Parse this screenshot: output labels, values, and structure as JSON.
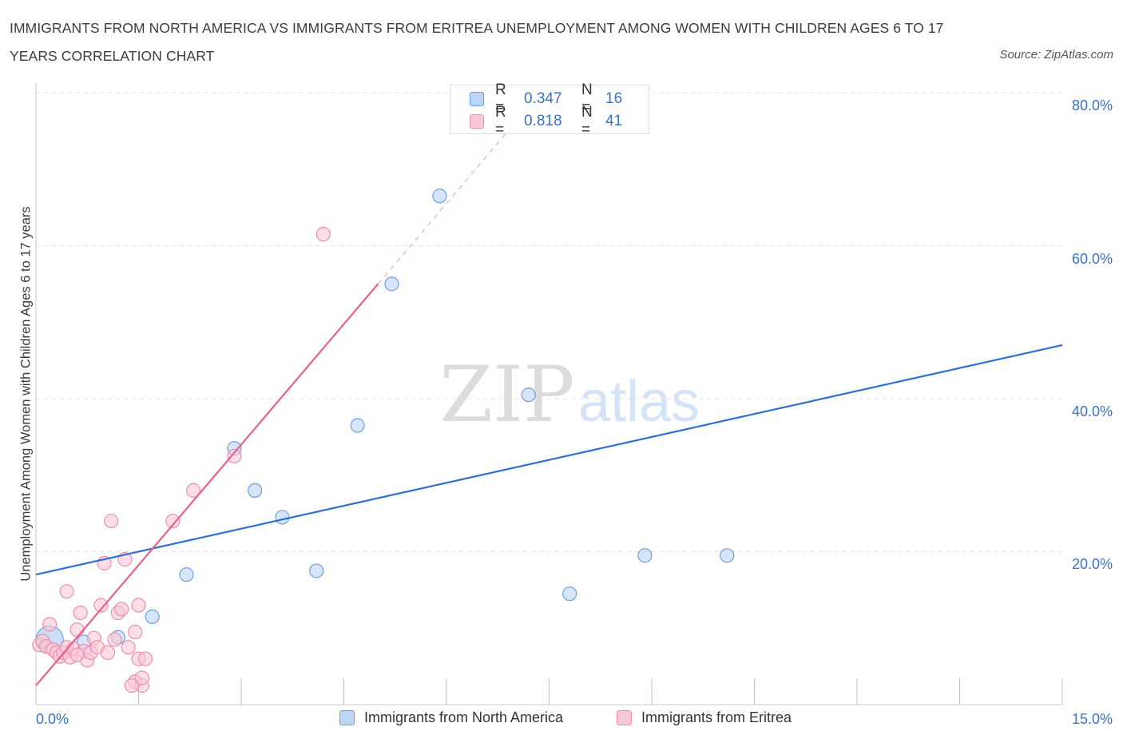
{
  "chart_data": {
    "type": "scatter",
    "title": "IMMIGRANTS FROM NORTH AMERICA VS IMMIGRANTS FROM ERITREA UNEMPLOYMENT AMONG WOMEN WITH CHILDREN AGES 6 TO 17 YEARS CORRELATION CHART",
    "source": "Source: ZipAtlas.com",
    "xlabel": "",
    "ylabel": "Unemployment Among Women with Children Ages 6 to 17 years",
    "xlim": [
      0,
      15
    ],
    "ylim": [
      0,
      80
    ],
    "x_tick_labels": [
      "0.0%",
      "15.0%"
    ],
    "y_tick_labels": [
      "20.0%",
      "40.0%",
      "60.0%",
      "80.0%"
    ],
    "y_ticks": [
      20,
      40,
      60,
      80
    ],
    "grid": true,
    "watermark": {
      "zip": "ZIP",
      "atlas": "atlas"
    },
    "series": [
      {
        "name": "Immigrants from North America",
        "color": "#6f9fe0",
        "fill": "#bcd4f6",
        "line_color": "#2f6fd0",
        "R_label": "R =",
        "R": "0.347",
        "N_label": "N =",
        "N": "16",
        "points": [
          [
            0.2,
            8.5
          ],
          [
            0.7,
            8.2
          ],
          [
            1.2,
            8.8
          ],
          [
            1.7,
            11.5
          ],
          [
            2.2,
            17.0
          ],
          [
            2.9,
            33.5
          ],
          [
            3.2,
            28.0
          ],
          [
            3.6,
            24.5
          ],
          [
            4.1,
            17.5
          ],
          [
            4.7,
            36.5
          ],
          [
            5.2,
            55.0
          ],
          [
            5.9,
            66.5
          ],
          [
            7.2,
            40.5
          ],
          [
            7.8,
            14.5
          ],
          [
            8.9,
            19.5
          ],
          [
            10.1,
            19.5
          ]
        ],
        "big_points": [
          0
        ],
        "trend": {
          "x": [
            0,
            15
          ],
          "y": [
            17.0,
            47.0
          ]
        }
      },
      {
        "name": "Immigrants from Eritrea",
        "color": "#ec8fac",
        "fill": "#f8c8d6",
        "line_color": "#e8608c",
        "R_label": "R =",
        "R": "0.818",
        "N_label": "N =",
        "N": "41",
        "points": [
          [
            0.05,
            7.8
          ],
          [
            0.1,
            8.3
          ],
          [
            0.15,
            7.6
          ],
          [
            0.2,
            10.5
          ],
          [
            0.25,
            7.2
          ],
          [
            0.3,
            6.8
          ],
          [
            0.35,
            6.3
          ],
          [
            0.4,
            6.8
          ],
          [
            0.45,
            7.5
          ],
          [
            0.5,
            6.2
          ],
          [
            0.45,
            14.8
          ],
          [
            0.55,
            7.3
          ],
          [
            0.6,
            9.8
          ],
          [
            0.65,
            12.0
          ],
          [
            0.7,
            7.0
          ],
          [
            0.75,
            5.8
          ],
          [
            0.8,
            6.8
          ],
          [
            0.85,
            8.7
          ],
          [
            0.9,
            7.5
          ],
          [
            0.95,
            13.0
          ],
          [
            1.0,
            18.5
          ],
          [
            1.05,
            6.8
          ],
          [
            1.1,
            24.0
          ],
          [
            1.15,
            8.5
          ],
          [
            1.2,
            12.0
          ],
          [
            1.25,
            12.5
          ],
          [
            1.3,
            19.0
          ],
          [
            1.35,
            7.5
          ],
          [
            1.45,
            3.0
          ],
          [
            1.5,
            6.0
          ],
          [
            1.55,
            2.5
          ],
          [
            1.4,
            2.5
          ],
          [
            1.5,
            13.0
          ],
          [
            1.45,
            9.5
          ],
          [
            1.6,
            6.0
          ],
          [
            1.55,
            3.5
          ],
          [
            2.0,
            24.0
          ],
          [
            2.3,
            28.0
          ],
          [
            2.9,
            32.5
          ],
          [
            4.2,
            61.5
          ],
          [
            0.6,
            6.5
          ]
        ],
        "big_points": [],
        "trend": {
          "x": [
            0,
            5.0
          ],
          "y": [
            2.5,
            55.0
          ]
        },
        "trend_dashed": {
          "x": [
            5.0,
            6.9
          ],
          "y": [
            55.0,
            75.0
          ]
        }
      }
    ]
  }
}
